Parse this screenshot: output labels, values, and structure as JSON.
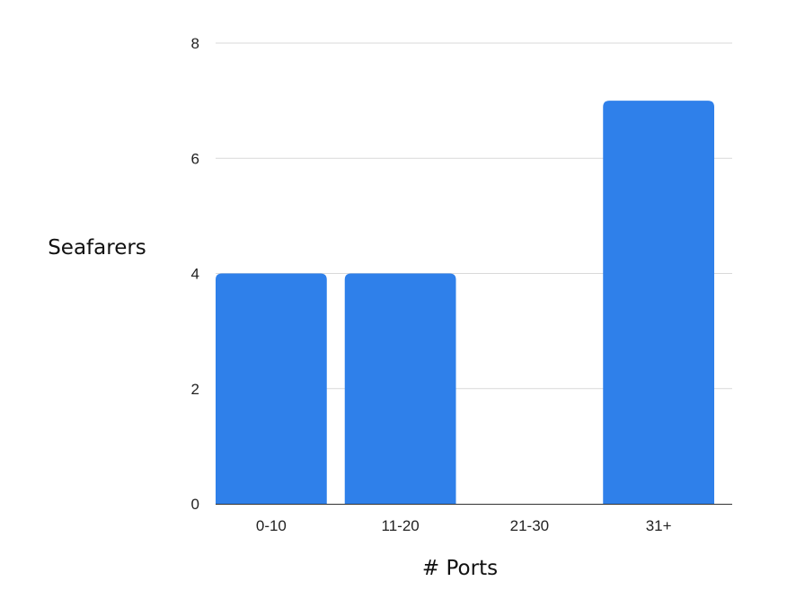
{
  "chart_data": {
    "type": "bar",
    "categories": [
      "0-10",
      "11-20",
      "21-30",
      "31+"
    ],
    "values": [
      4,
      4,
      0,
      7
    ],
    "xlabel": "# Ports",
    "ylabel": "Seafarers",
    "ylim": [
      0,
      8
    ],
    "yticks": [
      "0",
      "2",
      "4",
      "6",
      "8"
    ],
    "grid": true,
    "legend": "none",
    "bar_color": "#2f80ea"
  }
}
